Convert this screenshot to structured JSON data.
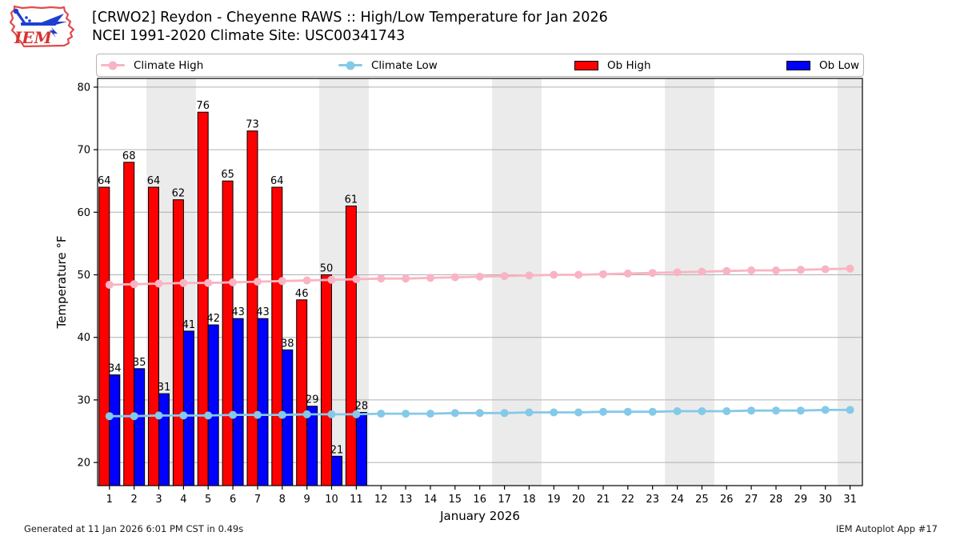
{
  "header": {
    "logo_text": "IEM",
    "title_line1": "[CRWO2] Reydon - Cheyenne RAWS :: High/Low Temperature for Jan 2026",
    "title_line2": "NCEI 1991-2020 Climate Site: USC00341743"
  },
  "legend": {
    "items": [
      {
        "label": "Climate High",
        "marker": "line-dot",
        "color": "#f9b4c3"
      },
      {
        "label": "Climate Low",
        "marker": "line-dot",
        "color": "#85c9e8"
      },
      {
        "label": "Ob High",
        "marker": "swatch",
        "color": "#ff0000"
      },
      {
        "label": "Ob Low",
        "marker": "swatch",
        "color": "#0000ff"
      }
    ]
  },
  "footer": {
    "left": "Generated at 11 Jan 2026 6:01 PM CST in 0.49s",
    "right": "IEM Autoplot App #17"
  },
  "chart_data": {
    "type": "bar",
    "title": "[CRWO2] Reydon - Cheyenne RAWS :: High/Low Temperature for Jan 2026",
    "subtitle": "NCEI 1991-2020 Climate Site: USC00341743",
    "xlabel": "January 2026",
    "ylabel": "Temperature °F",
    "x": [
      1,
      2,
      3,
      4,
      5,
      6,
      7,
      8,
      9,
      10,
      11,
      12,
      13,
      14,
      15,
      16,
      17,
      18,
      19,
      20,
      21,
      22,
      23,
      24,
      25,
      26,
      27,
      28,
      29,
      30,
      31
    ],
    "xlim": [
      0.52,
      31.5
    ],
    "ylim": [
      16.3,
      81.4
    ],
    "yticks": [
      20,
      30,
      40,
      50,
      60,
      70,
      80
    ],
    "grid": "horizontal-only",
    "legend_position": "top",
    "weekend_shading_days": [
      3,
      4,
      10,
      11,
      17,
      18,
      24,
      25,
      31
    ],
    "colors": {
      "weekend_band": "#ebebeb",
      "gridline": "#b0b0b0",
      "axis": "#000000",
      "bar_edge": "#000000"
    },
    "series": [
      {
        "name": "Ob High",
        "type": "bar",
        "color": "#ff0000",
        "x": [
          1,
          2,
          3,
          4,
          5,
          6,
          7,
          8,
          9,
          10,
          11
        ],
        "values": [
          64,
          68,
          64,
          62,
          76,
          65,
          73,
          64,
          46,
          50,
          61
        ],
        "labels_shown": true
      },
      {
        "name": "Ob Low",
        "type": "bar",
        "color": "#0000ff",
        "x": [
          1,
          2,
          3,
          4,
          5,
          6,
          7,
          8,
          9,
          10,
          11
        ],
        "values": [
          34,
          35,
          31,
          41,
          42,
          43,
          43,
          38,
          29,
          21,
          28
        ],
        "labels_shown": true
      },
      {
        "name": "Climate High",
        "type": "line",
        "color": "#f9b4c3",
        "values": [
          48.4,
          48.5,
          48.6,
          48.7,
          48.7,
          48.8,
          48.9,
          49.0,
          49.1,
          49.2,
          49.3,
          49.4,
          49.4,
          49.5,
          49.6,
          49.7,
          49.8,
          49.9,
          50.0,
          50.0,
          50.1,
          50.2,
          50.3,
          50.4,
          50.5,
          50.6,
          50.7,
          50.7,
          50.8,
          50.9,
          51.0
        ]
      },
      {
        "name": "Climate Low",
        "type": "line",
        "color": "#85c9e8",
        "values": [
          27.4,
          27.4,
          27.5,
          27.5,
          27.5,
          27.6,
          27.6,
          27.6,
          27.7,
          27.7,
          27.7,
          27.8,
          27.8,
          27.8,
          27.9,
          27.9,
          27.9,
          28.0,
          28.0,
          28.0,
          28.1,
          28.1,
          28.1,
          28.2,
          28.2,
          28.2,
          28.3,
          28.3,
          28.3,
          28.4,
          28.4
        ]
      }
    ]
  }
}
